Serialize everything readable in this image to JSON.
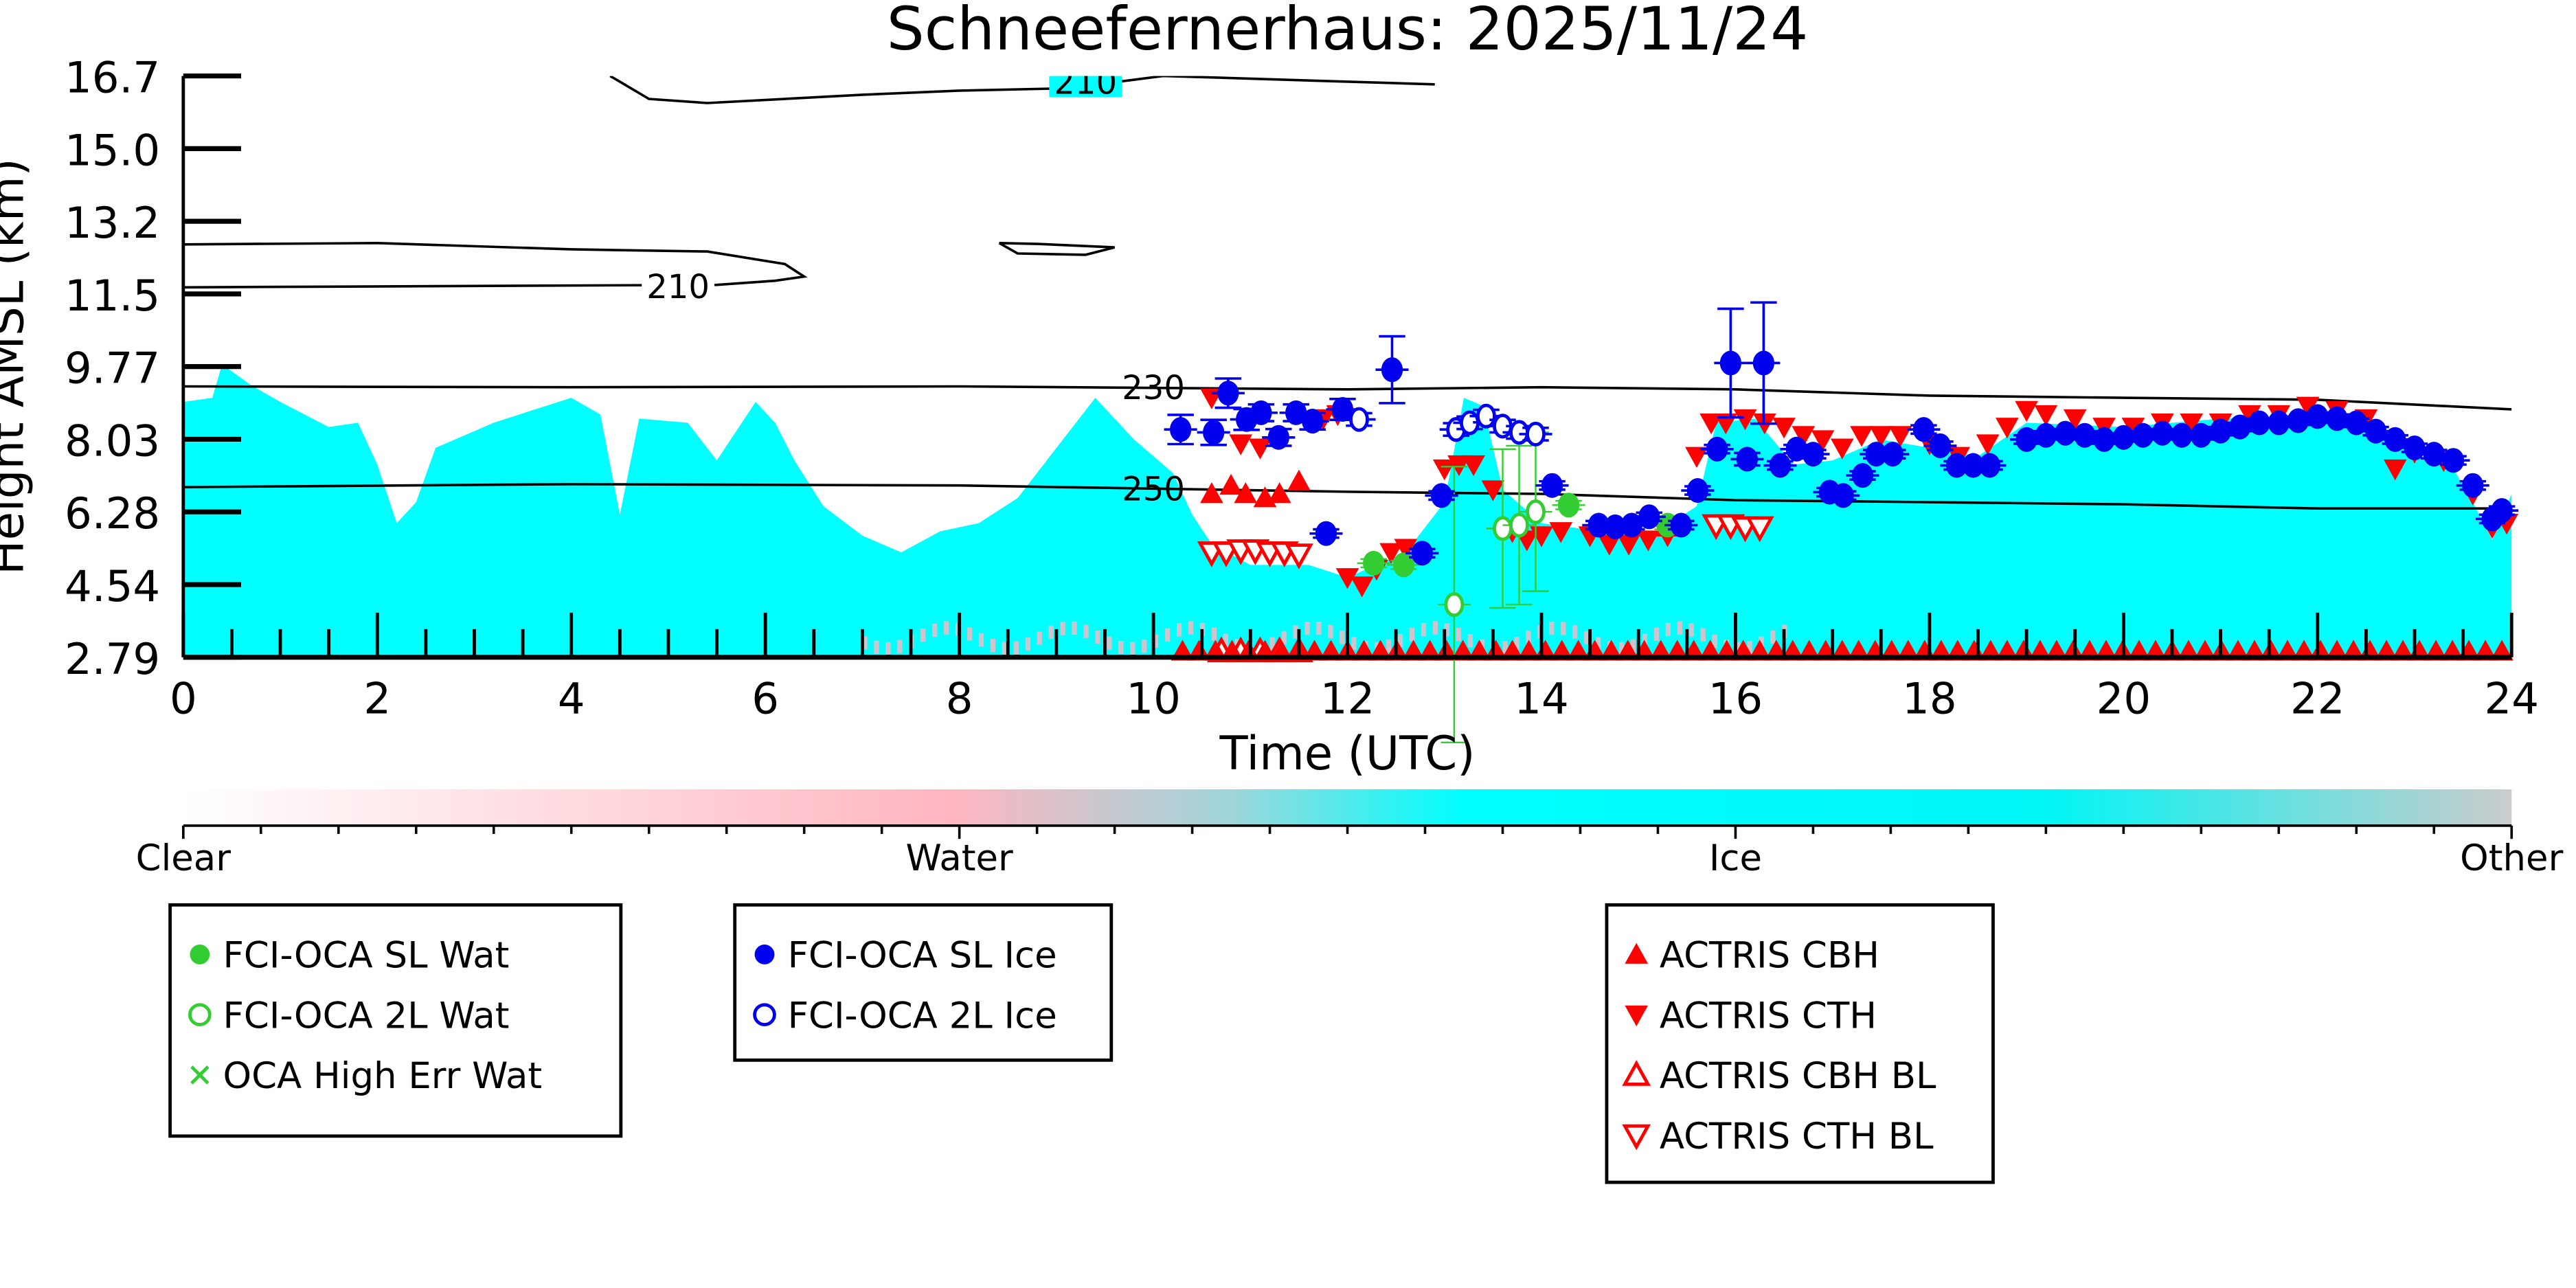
{
  "chart_data": {
    "type": "scatter",
    "title": "Schneefernerhaus: 2025/11/24",
    "xlabel": "Time (UTC)",
    "ylabel": "Height AMSL (km)",
    "xlim": [
      0,
      24
    ],
    "ylim": [
      2.79,
      16.7
    ],
    "xticks": [
      "0",
      "2",
      "4",
      "6",
      "8",
      "10",
      "12",
      "14",
      "16",
      "18",
      "20",
      "22",
      "24"
    ],
    "yticks": [
      "2.79",
      "4.54",
      "6.28",
      "8.03",
      "9.77",
      "11.5",
      "13.2",
      "15.0",
      "16.7"
    ],
    "colorbar": {
      "labels": [
        "Clear",
        "Water",
        "Ice",
        "Other"
      ],
      "colors": {
        "clear": "#ffffff",
        "water": "#ffb6c1",
        "ice": "#00ffff",
        "other": "#cccccc"
      }
    },
    "ice_cloud_top_km": [
      [
        0,
        8.9
      ],
      [
        0.3,
        9.0
      ],
      [
        0.4,
        9.8
      ],
      [
        0.7,
        9.3
      ],
      [
        1.0,
        8.9
      ],
      [
        1.5,
        8.3
      ],
      [
        1.8,
        8.4
      ],
      [
        2.0,
        7.4
      ],
      [
        2.2,
        6.0
      ],
      [
        2.4,
        6.5
      ],
      [
        2.6,
        7.8
      ],
      [
        3.2,
        8.4
      ],
      [
        3.6,
        8.7
      ],
      [
        4.0,
        9.0
      ],
      [
        4.3,
        8.6
      ],
      [
        4.5,
        6.2
      ],
      [
        4.7,
        8.5
      ],
      [
        5.2,
        8.4
      ],
      [
        5.5,
        7.5
      ],
      [
        5.9,
        8.9
      ],
      [
        6.1,
        8.4
      ],
      [
        6.3,
        7.5
      ],
      [
        6.6,
        6.4
      ],
      [
        7.0,
        5.7
      ],
      [
        7.4,
        5.3
      ],
      [
        7.8,
        5.8
      ],
      [
        8.2,
        6.0
      ],
      [
        8.6,
        6.6
      ],
      [
        9.0,
        7.8
      ],
      [
        9.4,
        9.0
      ],
      [
        9.8,
        8.0
      ],
      [
        10.2,
        7.2
      ],
      [
        10.4,
        6.2
      ],
      [
        10.6,
        5.5
      ],
      [
        11.0,
        5.0
      ],
      [
        11.6,
        5.0
      ],
      [
        12.0,
        4.7
      ],
      [
        12.6,
        5.3
      ],
      [
        13.0,
        6.5
      ],
      [
        13.2,
        9.0
      ],
      [
        13.4,
        8.8
      ],
      [
        13.6,
        6.8
      ],
      [
        14.0,
        6.0
      ],
      [
        14.6,
        5.8
      ],
      [
        15.2,
        5.8
      ],
      [
        15.6,
        6.4
      ],
      [
        15.8,
        8.4
      ],
      [
        16.2,
        8.5
      ],
      [
        16.6,
        7.4
      ],
      [
        17.0,
        7.5
      ],
      [
        17.5,
        8.0
      ],
      [
        18.0,
        7.8
      ],
      [
        18.5,
        7.6
      ],
      [
        19,
        8.4
      ],
      [
        20,
        8.3
      ],
      [
        21,
        8.5
      ],
      [
        22,
        8.6
      ],
      [
        22.5,
        8.3
      ],
      [
        23.0,
        7.6
      ],
      [
        23.4,
        7.3
      ],
      [
        23.6,
        6.5
      ],
      [
        23.8,
        5.6
      ],
      [
        24,
        6.7
      ]
    ],
    "contours": [
      {
        "level": "230",
        "label_at": [
          10.0,
          9.24
        ],
        "points": [
          [
            0,
            9.27
          ],
          [
            4,
            9.25
          ],
          [
            8,
            9.27
          ],
          [
            12,
            9.2
          ],
          [
            14,
            9.25
          ],
          [
            16,
            9.2
          ],
          [
            18,
            9.05
          ],
          [
            20,
            9.0
          ],
          [
            22,
            8.95
          ],
          [
            24,
            8.72
          ]
        ]
      },
      {
        "level": "250",
        "label_at": [
          10.0,
          6.82
        ],
        "points": [
          [
            0,
            6.86
          ],
          [
            4,
            6.93
          ],
          [
            8,
            6.9
          ],
          [
            12,
            6.75
          ],
          [
            14,
            6.7
          ],
          [
            16,
            6.55
          ],
          [
            18,
            6.5
          ],
          [
            20,
            6.45
          ],
          [
            22,
            6.35
          ],
          [
            24,
            6.35
          ]
        ]
      },
      {
        "level": "210",
        "label_at": [
          5.1,
          11.66
        ],
        "points": [
          [
            0,
            12.67
          ],
          [
            2,
            12.7
          ],
          [
            4,
            12.55
          ],
          [
            5.4,
            12.5
          ],
          [
            6.2,
            12.2
          ],
          [
            6.4,
            11.9
          ],
          [
            6.1,
            11.8
          ],
          [
            5.5,
            11.7
          ],
          [
            0,
            11.64
          ]
        ]
      },
      {
        "level": "",
        "label_at": null,
        "points": [
          [
            8.41,
            12.7
          ],
          [
            8.8,
            12.68
          ],
          [
            9.6,
            12.6
          ],
          [
            9.3,
            12.42
          ],
          [
            8.6,
            12.45
          ],
          [
            8.41,
            12.7
          ]
        ]
      },
      {
        "level": "210",
        "label_at": [
          9.3,
          16.55
        ],
        "points": [
          [
            4.4,
            16.7
          ],
          [
            4.8,
            16.15
          ],
          [
            5.4,
            16.05
          ],
          [
            7.0,
            16.25
          ],
          [
            8.0,
            16.35
          ],
          [
            9.0,
            16.4
          ],
          [
            9.6,
            16.55
          ],
          [
            10.1,
            16.7
          ],
          [
            12.9,
            16.5
          ]
        ]
      }
    ],
    "series": [
      {
        "name": "FCI-OCA SL Wat",
        "marker": "filled-circle",
        "color": "#33cc33",
        "points": [
          [
            12.27,
            5.04,
            0.1
          ],
          [
            12.58,
            5.0,
            0.1
          ],
          [
            14.28,
            6.43,
            0.1
          ],
          [
            15.3,
            5.95,
            0.1
          ]
        ]
      },
      {
        "name": "FCI-OCA 2L Wat",
        "marker": "open-circle",
        "color": "#33cc33",
        "points": [
          [
            13.1,
            4.05,
            3.3
          ],
          [
            13.6,
            5.87,
            1.9
          ],
          [
            13.77,
            5.95,
            1.9
          ],
          [
            13.94,
            6.27,
            1.9
          ]
        ]
      },
      {
        "name": "OCA High Err Wat",
        "marker": "x",
        "color": "#33cc33",
        "points": []
      },
      {
        "name": "FCI-OCA SL Ice",
        "marker": "filled-circle",
        "color": "#0000ee",
        "points": [
          [
            10.28,
            8.24,
            0.35
          ],
          [
            10.62,
            8.17,
            0.3
          ],
          [
            10.77,
            9.11,
            0.35
          ],
          [
            10.96,
            8.48,
            0.25
          ],
          [
            11.11,
            8.64,
            0.2
          ],
          [
            11.29,
            8.05,
            0.2
          ],
          [
            11.47,
            8.64,
            0.2
          ],
          [
            11.64,
            8.44,
            0.2
          ],
          [
            11.78,
            5.75,
            0.1
          ],
          [
            11.95,
            8.72,
            0.25
          ],
          [
            12.46,
            9.67,
            0.8
          ],
          [
            12.77,
            5.28,
            0.1
          ],
          [
            12.97,
            6.66,
            0.1
          ],
          [
            14.11,
            6.9,
            0.1
          ],
          [
            14.59,
            5.95,
            0.1
          ],
          [
            14.76,
            5.91,
            0.1
          ],
          [
            14.93,
            5.95,
            0.1
          ],
          [
            15.11,
            6.15,
            0.1
          ],
          [
            15.44,
            5.95,
            0.1
          ],
          [
            15.61,
            6.78,
            0.1
          ],
          [
            15.81,
            7.77,
            0.1
          ],
          [
            15.95,
            9.83,
            1.3
          ],
          [
            16.12,
            7.53,
            0.15
          ],
          [
            16.29,
            9.83,
            1.45
          ],
          [
            16.46,
            7.38,
            0.1
          ],
          [
            16.63,
            7.77,
            0.1
          ],
          [
            16.8,
            7.65,
            0.1
          ],
          [
            16.97,
            6.74,
            0.1
          ],
          [
            17.11,
            6.66,
            0.1
          ],
          [
            17.31,
            7.14,
            0.1
          ],
          [
            17.45,
            7.65,
            0.1
          ],
          [
            17.62,
            7.65,
            0.1
          ],
          [
            17.94,
            8.24,
            0.1
          ],
          [
            18.11,
            7.85,
            0.1
          ],
          [
            18.28,
            7.38,
            0.1
          ],
          [
            18.45,
            7.38,
            0.1
          ],
          [
            18.62,
            7.38,
            0.1
          ],
          [
            19.0,
            8.0,
            0.1
          ],
          [
            19.2,
            8.1,
            0.1
          ],
          [
            19.4,
            8.15,
            0.1
          ],
          [
            19.6,
            8.1,
            0.1
          ],
          [
            19.8,
            8.0,
            0.1
          ],
          [
            20.0,
            8.05,
            0.1
          ],
          [
            20.2,
            8.1,
            0.1
          ],
          [
            20.4,
            8.15,
            0.1
          ],
          [
            20.6,
            8.1,
            0.1
          ],
          [
            20.8,
            8.1,
            0.1
          ],
          [
            21.0,
            8.2,
            0.1
          ],
          [
            21.2,
            8.3,
            0.1
          ],
          [
            21.4,
            8.4,
            0.1
          ],
          [
            21.6,
            8.4,
            0.1
          ],
          [
            21.8,
            8.45,
            0.1
          ],
          [
            22.0,
            8.55,
            0.1
          ],
          [
            22.2,
            8.5,
            0.1
          ],
          [
            22.4,
            8.4,
            0.1
          ],
          [
            22.6,
            8.2,
            0.1
          ],
          [
            22.8,
            8.0,
            0.1
          ],
          [
            23.0,
            7.8,
            0.1
          ],
          [
            23.2,
            7.65,
            0.1
          ],
          [
            23.4,
            7.5,
            0.1
          ],
          [
            23.6,
            6.9,
            0.1
          ],
          [
            23.8,
            6.1,
            0.1
          ],
          [
            23.9,
            6.3,
            0.1
          ]
        ]
      },
      {
        "name": "FCI-OCA 2L Ice",
        "marker": "open-circle",
        "color": "#0000ee",
        "points": [
          [
            12.12,
            8.48,
            0.15
          ],
          [
            13.12,
            8.24,
            0.15
          ],
          [
            13.26,
            8.4,
            0.15
          ],
          [
            13.43,
            8.56,
            0.15
          ],
          [
            13.6,
            8.32,
            0.15
          ],
          [
            13.77,
            8.17,
            0.15
          ],
          [
            13.94,
            8.13,
            0.15
          ]
        ]
      },
      {
        "name": "ACTRIS CBH",
        "marker": "filled-triangle-up",
        "color": "#ff0000",
        "points": [
          [
            10.6,
            6.7
          ],
          [
            10.8,
            6.9
          ],
          [
            10.95,
            6.7
          ],
          [
            11.15,
            6.6
          ],
          [
            11.3,
            6.7
          ],
          [
            11.5,
            7.0
          ],
          [
            15.3,
            5.9
          ]
        ],
        "surface_run": {
          "start_h": 10.3,
          "end_h": 24,
          "step_h": 0.17,
          "km": 2.93
        }
      },
      {
        "name": "ACTRIS CTH",
        "marker": "filled-triangle-down",
        "color": "#ff0000",
        "points": [
          [
            10.6,
            9.0
          ],
          [
            10.9,
            7.9
          ],
          [
            11.1,
            7.8
          ],
          [
            11.75,
            8.5
          ],
          [
            11.9,
            8.6
          ],
          [
            12.0,
            4.7
          ],
          [
            12.15,
            4.5
          ],
          [
            12.3,
            4.9
          ],
          [
            12.45,
            5.3
          ],
          [
            12.6,
            5.4
          ],
          [
            13.0,
            7.3
          ],
          [
            13.15,
            7.4
          ],
          [
            13.3,
            7.4
          ],
          [
            13.5,
            6.8
          ],
          [
            13.7,
            5.8
          ],
          [
            13.85,
            5.6
          ],
          [
            14.0,
            5.7
          ],
          [
            14.2,
            5.8
          ],
          [
            14.5,
            5.7
          ],
          [
            14.7,
            5.5
          ],
          [
            14.9,
            5.5
          ],
          [
            15.1,
            5.6
          ],
          [
            15.3,
            5.7
          ],
          [
            15.6,
            7.6
          ],
          [
            15.75,
            8.4
          ],
          [
            15.9,
            8.4
          ],
          [
            16.1,
            8.5
          ],
          [
            16.3,
            8.4
          ],
          [
            16.5,
            8.3
          ],
          [
            16.7,
            8.1
          ],
          [
            16.9,
            8.0
          ],
          [
            17.1,
            7.8
          ],
          [
            17.3,
            8.1
          ],
          [
            17.5,
            8.1
          ],
          [
            17.7,
            8.1
          ],
          [
            18.0,
            7.9
          ],
          [
            18.3,
            7.6
          ],
          [
            18.6,
            7.9
          ],
          [
            18.8,
            8.3
          ],
          [
            19.0,
            8.7
          ],
          [
            19.2,
            8.6
          ],
          [
            19.5,
            8.5
          ],
          [
            19.8,
            8.3
          ],
          [
            20.1,
            8.3
          ],
          [
            20.4,
            8.4
          ],
          [
            20.7,
            8.4
          ],
          [
            21.0,
            8.4
          ],
          [
            21.3,
            8.6
          ],
          [
            21.6,
            8.6
          ],
          [
            21.9,
            8.8
          ],
          [
            22.2,
            8.7
          ],
          [
            22.5,
            8.5
          ],
          [
            22.8,
            7.3
          ],
          [
            23.0,
            7.7
          ],
          [
            23.3,
            7.5
          ],
          [
            23.6,
            6.7
          ],
          [
            23.8,
            5.9
          ],
          [
            23.95,
            6.0
          ]
        ]
      },
      {
        "name": "ACTRIS CBH BL",
        "marker": "open-triangle-up",
        "color": "#ff0000",
        "points": [
          [
            10.7,
            2.93
          ],
          [
            10.9,
            2.93
          ],
          [
            11.1,
            2.93
          ],
          [
            11.3,
            2.93
          ],
          [
            11.5,
            2.93
          ]
        ]
      },
      {
        "name": "ACTRIS CTH BL",
        "marker": "open-triangle-down",
        "color": "#ff0000",
        "points": [
          [
            10.6,
            5.3
          ],
          [
            10.75,
            5.3
          ],
          [
            10.9,
            5.35
          ],
          [
            11.05,
            5.35
          ],
          [
            11.2,
            5.3
          ],
          [
            11.35,
            5.3
          ],
          [
            11.5,
            5.25
          ],
          [
            15.8,
            5.95
          ],
          [
            15.95,
            5.95
          ],
          [
            16.1,
            5.9
          ],
          [
            16.25,
            5.9
          ]
        ]
      }
    ],
    "legends": [
      [
        "FCI-OCA SL Wat",
        "FCI-OCA 2L Wat",
        "OCA High Err Wat"
      ],
      [
        "FCI-OCA SL Ice",
        "FCI-OCA 2L Ice"
      ],
      [
        "ACTRIS CBH",
        "ACTRIS CTH",
        "ACTRIS CBH BL",
        "ACTRIS CTH BL"
      ]
    ]
  }
}
